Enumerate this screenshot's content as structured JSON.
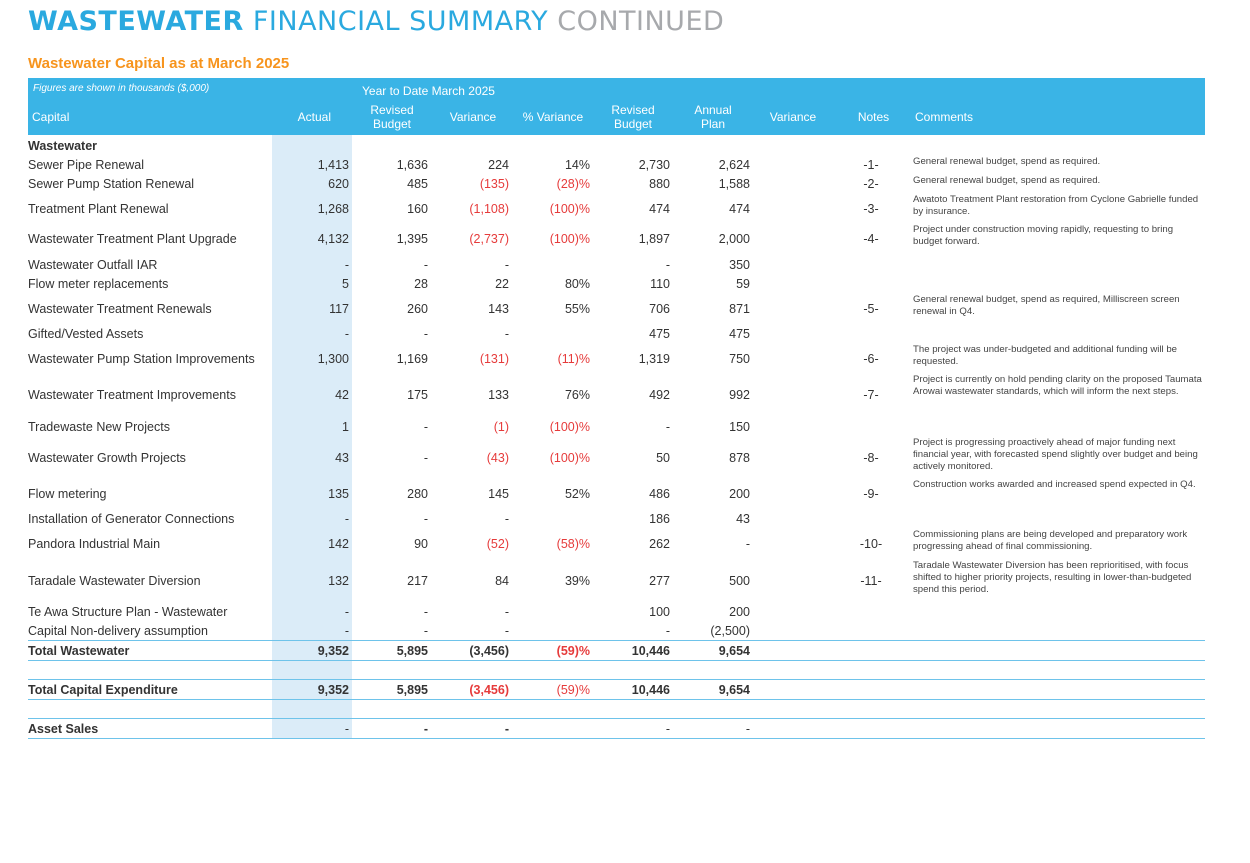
{
  "title": {
    "part1": "WASTEWATER",
    "part2": " FINANCIAL SUMMARY",
    "part3": " CONTINUED"
  },
  "subtitle": "Wastewater Capital as at March 2025",
  "header": {
    "figures_note": "Figures are shown in thousands ($,000)",
    "ytd_label": "Year to Date  March 2025",
    "capital": "Capital",
    "actual": "Actual",
    "revised_budget_1": "Revised Budget",
    "variance_1": "Variance",
    "pct_variance": "% Variance",
    "revised_budget_2": "Revised Budget",
    "annual_plan": "Annual Plan",
    "variance_2": "Variance",
    "notes": "Notes",
    "comments": "Comments"
  },
  "section_label": "Wastewater",
  "rows": [
    {
      "label": "Sewer Pipe Renewal",
      "actual": "1,413",
      "rb": "1,636",
      "var": "224",
      "pct": "14%",
      "rb2": "2,730",
      "plan": "2,624",
      "note": "-1-",
      "comment": "General renewal budget, spend as required."
    },
    {
      "label": "Sewer Pump Station Renewal",
      "actual": "620",
      "rb": "485",
      "var": "(135)",
      "pct": "(28)%",
      "rb2": "880",
      "plan": "1,588",
      "note": "-2-",
      "comment": "General renewal budget, spend as required."
    },
    {
      "label": "Treatment Plant Renewal",
      "actual": "1,268",
      "rb": "160",
      "var": "(1,108)",
      "pct": "(100)%",
      "rb2": "474",
      "plan": "474",
      "note": "-3-",
      "comment": "Awatoto Treatment Plant restoration from Cyclone Gabrielle funded by insurance."
    },
    {
      "label": "Wastewater Treatment Plant Upgrade",
      "actual": "4,132",
      "rb": "1,395",
      "var": "(2,737)",
      "pct": "(100)%",
      "rb2": "1,897",
      "plan": "2,000",
      "note": "-4-",
      "comment": "Project under construction moving rapidly, requesting to bring budget forward."
    },
    {
      "label": "Wastewater Outfall IAR",
      "actual": "-",
      "rb": "-",
      "var": "-",
      "pct": "",
      "rb2": "-",
      "plan": "350",
      "note": "",
      "comment": ""
    },
    {
      "label": "Flow meter replacements",
      "actual": "5",
      "rb": "28",
      "var": "22",
      "pct": "80%",
      "rb2": "110",
      "plan": "59",
      "note": "",
      "comment": ""
    },
    {
      "label": "Wastewater Treatment Renewals",
      "actual": "117",
      "rb": "260",
      "var": "143",
      "pct": "55%",
      "rb2": "706",
      "plan": "871",
      "note": "-5-",
      "comment": "General renewal budget, spend as required, Milliscreen screen renewal in Q4."
    },
    {
      "label": "Gifted/Vested Assets",
      "actual": "-",
      "rb": "-",
      "var": "-",
      "pct": "",
      "rb2": "475",
      "plan": "475",
      "note": "",
      "comment": ""
    },
    {
      "label": "Wastewater Pump Station Improvements",
      "actual": "1,300",
      "rb": "1,169",
      "var": "(131)",
      "pct": "(11)%",
      "rb2": "1,319",
      "plan": "750",
      "note": "-6-",
      "comment": "The project was under-budgeted and additional funding will be requested."
    },
    {
      "label": "Wastewater Treatment Improvements",
      "actual": "42",
      "rb": "175",
      "var": "133",
      "pct": "76%",
      "rb2": "492",
      "plan": "992",
      "note": "-7-",
      "comment": "Project is currently on hold pending clarity on the proposed Taumata Arowai wastewater standards, which will inform the next steps."
    },
    {
      "label": "Tradewaste New Projects",
      "actual": "1",
      "rb": "-",
      "var": "(1)",
      "pct": "(100)%",
      "rb2": "-",
      "plan": "150",
      "note": "",
      "comment": ""
    },
    {
      "label": "Wastewater Growth Projects",
      "actual": "43",
      "rb": "-",
      "var": "(43)",
      "pct": "(100)%",
      "rb2": "50",
      "plan": "878",
      "note": "-8-",
      "comment": "Project is progressing proactively ahead of major funding next financial year, with forecasted spend slightly over budget and being actively monitored."
    },
    {
      "label": "Flow metering",
      "actual": "135",
      "rb": "280",
      "var": "145",
      "pct": "52%",
      "rb2": "486",
      "plan": "200",
      "note": "-9-",
      "comment": "Construction works awarded and increased spend expected in Q4."
    },
    {
      "label": "Installation of Generator Connections",
      "actual": "-",
      "rb": "-",
      "var": "-",
      "pct": "",
      "rb2": "186",
      "plan": "43",
      "note": "",
      "comment": ""
    },
    {
      "label": "Pandora Industrial Main",
      "actual": "142",
      "rb": "90",
      "var": "(52)",
      "pct": "(58)%",
      "rb2": "262",
      "plan": "-",
      "note": "-10-",
      "comment": "Commissioning plans are being developed and preparatory work progressing ahead of final commissioning."
    },
    {
      "label": "Taradale Wastewater Diversion",
      "actual": "132",
      "rb": "217",
      "var": "84",
      "pct": "39%",
      "rb2": "277",
      "plan": "500",
      "note": "-11-",
      "comment": "Taradale Wastewater Diversion has been reprioritised, with focus shifted to higher priority projects, resulting in lower-than-budgeted spend this period."
    },
    {
      "label": "Te Awa Structure Plan - Wastewater",
      "actual": "-",
      "rb": "-",
      "var": "-",
      "pct": "",
      "rb2": "100",
      "plan": "200",
      "note": "",
      "comment": ""
    },
    {
      "label": "Capital Non-delivery assumption",
      "actual": "-",
      "rb": "-",
      "var": "-",
      "pct": "",
      "rb2": "-",
      "plan": "(2,500)",
      "note": "",
      "comment": ""
    }
  ],
  "total_wastewater": {
    "label": "Total Wastewater",
    "actual": "9,352",
    "rb": "5,895",
    "var": "(3,456)",
    "pct": "(59)%",
    "rb2": "10,446",
    "plan": "9,654"
  },
  "total_capex": {
    "label": "Total Capital Expenditure",
    "actual": "9,352",
    "rb": "5,895",
    "var": "(3,456)",
    "pct": "(59)%",
    "rb2": "10,446",
    "plan": "9,654"
  },
  "asset_sales": {
    "label": "Asset Sales",
    "actual": "-",
    "rb": "-",
    "var": "-",
    "pct": "",
    "rb2": "-",
    "plan": "-"
  },
  "colors": {
    "accent_blue": "#3ab4e6",
    "orange": "#f7941d",
    "negative_red": "#e63b3b",
    "actual_band": "#dbecf8"
  }
}
